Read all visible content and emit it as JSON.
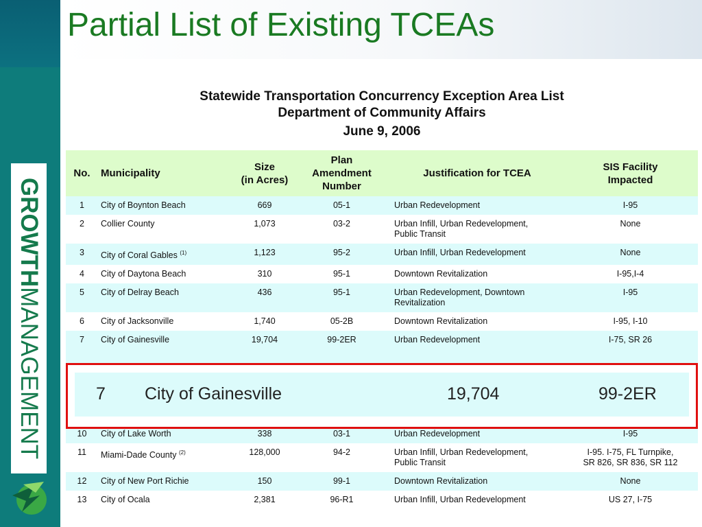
{
  "slide_title": "Partial List of Existing TCEAs",
  "branding": {
    "bold": "GROWTH",
    "light": "MANAGEMENT"
  },
  "document": {
    "title": "Statewide Transportation Concurrency Exception Area List",
    "subtitle": "Department of Community Affairs",
    "date": "June 9, 2006"
  },
  "table": {
    "headers": {
      "no": "No.",
      "municipality": "Municipality",
      "size_1": "Size",
      "size_2": "(in Acres)",
      "plan_1": "Plan",
      "plan_2": "Amendment",
      "plan_3": "Number",
      "justification": "Justification for TCEA",
      "sis_1": "SIS Facility",
      "sis_2": "Impacted"
    },
    "rows": [
      {
        "no": "1",
        "municipality": "City of Boynton Beach",
        "note": "",
        "size": "669",
        "plan": "05-1",
        "justification": "Urban Redevelopment",
        "justification_2": "",
        "sis": "I-95",
        "sis_2": ""
      },
      {
        "no": "2",
        "municipality": "Collier County",
        "note": "",
        "size": "1,073",
        "plan": "03-2",
        "justification": "Urban Infill, Urban Redevelopment,",
        "justification_2": "Public Transit",
        "sis": "None",
        "sis_2": ""
      },
      {
        "no": "3",
        "municipality": "City of Coral Gables",
        "note": "(1)",
        "size": "1,123",
        "plan": "95-2",
        "justification": "Urban Infill, Urban Redevelopment",
        "justification_2": "",
        "sis": "None",
        "sis_2": ""
      },
      {
        "no": "4",
        "municipality": "City of Daytona Beach",
        "note": "",
        "size": "310",
        "plan": "95-1",
        "justification": "Downtown Revitalization",
        "justification_2": "",
        "sis": "I-95,I-4",
        "sis_2": ""
      },
      {
        "no": "5",
        "municipality": "City of Delray Beach",
        "note": "",
        "size": "436",
        "plan": "95-1",
        "justification": "Urban Redevelopment, Downtown",
        "justification_2": "Revitalization",
        "sis": "I-95",
        "sis_2": ""
      },
      {
        "no": "6",
        "municipality": "City of Jacksonville",
        "note": "",
        "size": "1,740",
        "plan": "05-2B",
        "justification": "Downtown Revitalization",
        "justification_2": "",
        "sis": "I-95, I-10",
        "sis_2": ""
      },
      {
        "no": "7",
        "municipality": "City of Gainesville",
        "note": "",
        "size": "19,704",
        "plan": "99-2ER",
        "justification": "Urban Redevelopment",
        "justification_2": "",
        "sis": "I-75, SR 26",
        "sis_2": ""
      }
    ],
    "rows_after": [
      {
        "no": "10",
        "municipality": "City of Lake Worth",
        "note": "",
        "size": "338",
        "plan": "03-1",
        "justification": "Urban Redevelopment",
        "justification_2": "",
        "sis": "I-95",
        "sis_2": ""
      },
      {
        "no": "11",
        "municipality": "Miami-Dade County",
        "note": "(2)",
        "size": "128,000",
        "plan": "94-2",
        "justification": "Urban Infill, Urban Redevelopment,",
        "justification_2": "Public Transit",
        "sis": "I-95. I-75, FL Turnpike,",
        "sis_2": "SR 826, SR 836, SR 112"
      },
      {
        "no": "12",
        "municipality": "City of New Port Richie",
        "note": "",
        "size": "150",
        "plan": "99-1",
        "justification": "Downtown Revitalization",
        "justification_2": "",
        "sis": "None",
        "sis_2": ""
      },
      {
        "no": "13",
        "municipality": "City of Ocala",
        "note": "",
        "size": "2,381",
        "plan": "96-R1",
        "justification": "Urban Infill, Urban Redevelopment",
        "justification_2": "",
        "sis": "US 27, I-75",
        "sis_2": ""
      }
    ]
  },
  "callout": {
    "no": "7",
    "municipality": "City of Gainesville",
    "size": "19,704",
    "plan": "99-2ER"
  },
  "colors": {
    "brand_teal": "#0e7c7b",
    "title_green": "#1a7a22",
    "header_row": "#ddfccb",
    "row_stripe": "#dcfbfb",
    "callout_border": "#e01010"
  }
}
